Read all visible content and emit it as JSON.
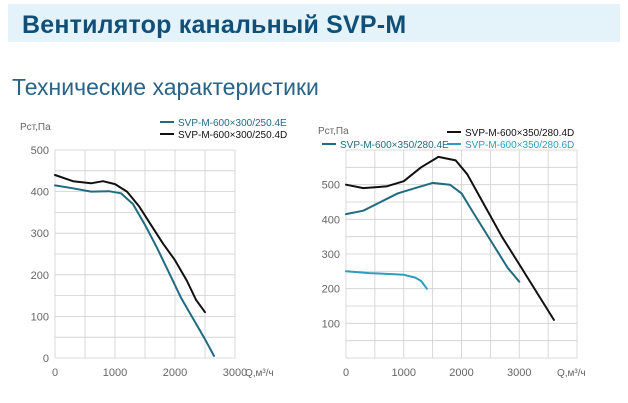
{
  "header": {
    "title": "Вентилятор канальный SVP-M"
  },
  "section": {
    "title": "Технические характеристики"
  },
  "colors": {
    "black_series": "#111111",
    "teal_series": "#1f6b80",
    "light_teal_series": "#2e9cc0",
    "grid": "#cfcfcf",
    "axis_text": "#666666",
    "banner_bg": "#e4f3f9",
    "title": "#0f4f78"
  },
  "chart_data": [
    {
      "type": "line",
      "ylabel": "Pст,Па",
      "xlabel": "Q,м³/ч",
      "xlim": [
        0,
        3000
      ],
      "ylim": [
        0,
        500
      ],
      "x_ticks": [
        0,
        1000,
        2000,
        3000
      ],
      "y_ticks": [
        100,
        200,
        300,
        400,
        500
      ],
      "grid": true,
      "legend_position": "top",
      "series": [
        {
          "name": "SVP-M-600×300/250.4E",
          "color": "#1f6b80",
          "points": [
            [
              0,
              415
            ],
            [
              300,
              408
            ],
            [
              600,
              400
            ],
            [
              900,
              401
            ],
            [
              1100,
              396
            ],
            [
              1300,
              370
            ],
            [
              1500,
              320
            ],
            [
              1700,
              265
            ],
            [
              1900,
              205
            ],
            [
              2100,
              145
            ],
            [
              2300,
              95
            ],
            [
              2500,
              45
            ],
            [
              2650,
              5
            ]
          ]
        },
        {
          "name": "SVP-M-600×300/250.4D",
          "color": "#111111",
          "points": [
            [
              0,
              440
            ],
            [
              300,
              425
            ],
            [
              600,
              420
            ],
            [
              800,
              425
            ],
            [
              1000,
              418
            ],
            [
              1200,
              400
            ],
            [
              1400,
              365
            ],
            [
              1600,
              320
            ],
            [
              1800,
              275
            ],
            [
              2000,
              235
            ],
            [
              2200,
              185
            ],
            [
              2350,
              140
            ],
            [
              2500,
              110
            ]
          ]
        }
      ]
    },
    {
      "type": "line",
      "ylabel": "Pст,Па",
      "xlabel": "Q,м³/ч",
      "xlim": [
        0,
        4000
      ],
      "ylim": [
        0,
        600
      ],
      "x_ticks": [
        0,
        1000,
        2000,
        3000
      ],
      "y_ticks": [
        100,
        200,
        300,
        400,
        500
      ],
      "grid": true,
      "legend_position": "top",
      "series": [
        {
          "name": "SVP-M-600×350/280.4D",
          "color": "#111111",
          "points": [
            [
              0,
              500
            ],
            [
              300,
              490
            ],
            [
              700,
              495
            ],
            [
              1000,
              510
            ],
            [
              1300,
              550
            ],
            [
              1600,
              580
            ],
            [
              1900,
              570
            ],
            [
              2100,
              530
            ],
            [
              2400,
              440
            ],
            [
              2700,
              350
            ],
            [
              3000,
              270
            ],
            [
              3300,
              190
            ],
            [
              3600,
              110
            ]
          ]
        },
        {
          "name": "SVP-M-600×350/280.4E",
          "color": "#1f6b80",
          "points": [
            [
              0,
              415
            ],
            [
              300,
              425
            ],
            [
              600,
              450
            ],
            [
              900,
              475
            ],
            [
              1200,
              490
            ],
            [
              1500,
              505
            ],
            [
              1800,
              500
            ],
            [
              2000,
              475
            ],
            [
              2200,
              420
            ],
            [
              2500,
              340
            ],
            [
              2800,
              260
            ],
            [
              3000,
              220
            ]
          ]
        },
        {
          "name": "SVP-M-600×350/280.6D",
          "color": "#2e9cc0",
          "points": [
            [
              0,
              250
            ],
            [
              400,
              245
            ],
            [
              800,
              242
            ],
            [
              1000,
              240
            ],
            [
              1200,
              232
            ],
            [
              1300,
              222
            ],
            [
              1400,
              200
            ]
          ]
        }
      ]
    }
  ]
}
